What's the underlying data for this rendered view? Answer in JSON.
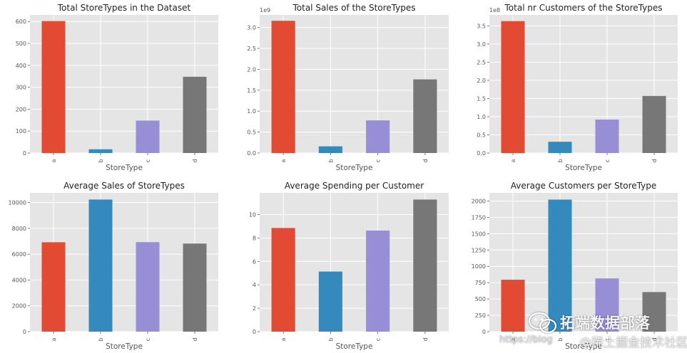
{
  "chart_data": [
    {
      "type": "bar",
      "title": "Total StoreTypes in the Dataset",
      "xlabel": "StoreType",
      "ylabel": "",
      "categories": [
        "a",
        "b",
        "c",
        "d"
      ],
      "values": [
        602,
        17,
        148,
        348
      ],
      "ylim": [
        0,
        630
      ],
      "yticks": [
        0,
        100,
        200,
        300,
        400,
        500,
        600
      ],
      "ytick_labels": [
        "0",
        "100",
        "200",
        "300",
        "400",
        "500",
        "600"
      ],
      "offset_label": "",
      "colors": [
        "#E24A33",
        "#348ABD",
        "#988ED5",
        "#777777"
      ],
      "grid": true
    },
    {
      "type": "bar",
      "title": "Total Sales of the StoreTypes",
      "xlabel": "StoreType",
      "ylabel": "",
      "categories": [
        "a",
        "b",
        "c",
        "d"
      ],
      "values": [
        3.16,
        0.16,
        0.78,
        1.76
      ],
      "ylim": [
        0,
        3.3
      ],
      "yticks": [
        0,
        0.5,
        1.0,
        1.5,
        2.0,
        2.5,
        3.0
      ],
      "ytick_labels": [
        "0.0",
        "0.5",
        "1.0",
        "1.5",
        "2.0",
        "2.5",
        "3.0"
      ],
      "offset_label": "1e9",
      "colors": [
        "#E24A33",
        "#348ABD",
        "#988ED5",
        "#777777"
      ],
      "grid": true
    },
    {
      "type": "bar",
      "title": "Total nr Customers of the StoreTypes",
      "xlabel": "StoreType",
      "ylabel": "",
      "categories": [
        "a",
        "b",
        "c",
        "d"
      ],
      "values": [
        3.63,
        0.31,
        0.92,
        1.57
      ],
      "ylim": [
        0,
        3.8
      ],
      "yticks": [
        0,
        0.5,
        1.0,
        1.5,
        2.0,
        2.5,
        3.0,
        3.5
      ],
      "ytick_labels": [
        "0.0",
        "0.5",
        "1.0",
        "1.5",
        "2.0",
        "2.5",
        "3.0",
        "3.5"
      ],
      "offset_label": "1e8",
      "colors": [
        "#E24A33",
        "#348ABD",
        "#988ED5",
        "#777777"
      ],
      "grid": true
    },
    {
      "type": "bar",
      "title": "Average Sales of StoreTypes",
      "xlabel": "StoreType",
      "ylabel": "",
      "categories": [
        "a",
        "b",
        "c",
        "d"
      ],
      "values": [
        6925,
        10233,
        6933,
        6822
      ],
      "ylim": [
        0,
        10750
      ],
      "yticks": [
        0,
        2000,
        4000,
        6000,
        8000,
        10000
      ],
      "ytick_labels": [
        "0",
        "2000",
        "4000",
        "6000",
        "8000",
        "10000"
      ],
      "offset_label": "",
      "colors": [
        "#E24A33",
        "#348ABD",
        "#988ED5",
        "#777777"
      ],
      "grid": true
    },
    {
      "type": "bar",
      "title": "Average Spending per Customer",
      "xlabel": "StoreType",
      "ylabel": "",
      "categories": [
        "a",
        "b",
        "c",
        "d"
      ],
      "values": [
        8.85,
        5.13,
        8.63,
        11.28
      ],
      "ylim": [
        0,
        11.85
      ],
      "yticks": [
        0,
        2,
        4,
        6,
        8,
        10
      ],
      "ytick_labels": [
        "0",
        "2",
        "4",
        "6",
        "8",
        "10"
      ],
      "offset_label": "",
      "colors": [
        "#E24A33",
        "#348ABD",
        "#988ED5",
        "#777777"
      ],
      "grid": true
    },
    {
      "type": "bar",
      "title": "Average Customers per StoreType",
      "xlabel": "StoreType",
      "ylabel": "",
      "categories": [
        "a",
        "b",
        "c",
        "d"
      ],
      "values": [
        795,
        2022,
        815,
        606
      ],
      "ylim": [
        0,
        2125
      ],
      "yticks": [
        0,
        250,
        500,
        750,
        1000,
        1250,
        1500,
        1750,
        2000
      ],
      "ytick_labels": [
        "0",
        "250",
        "500",
        "750",
        "1000",
        "1250",
        "1500",
        "1750",
        "2000"
      ],
      "offset_label": "",
      "colors": [
        "#E24A33",
        "#348ABD",
        "#988ED5",
        "#777777"
      ],
      "grid": true
    }
  ],
  "watermark": {
    "brand": "拓端数据部落",
    "url": "https://blog",
    "site": "@稀土掘金技术社区"
  },
  "icons": {
    "watermark_logo": "wechat-logo-icon"
  }
}
